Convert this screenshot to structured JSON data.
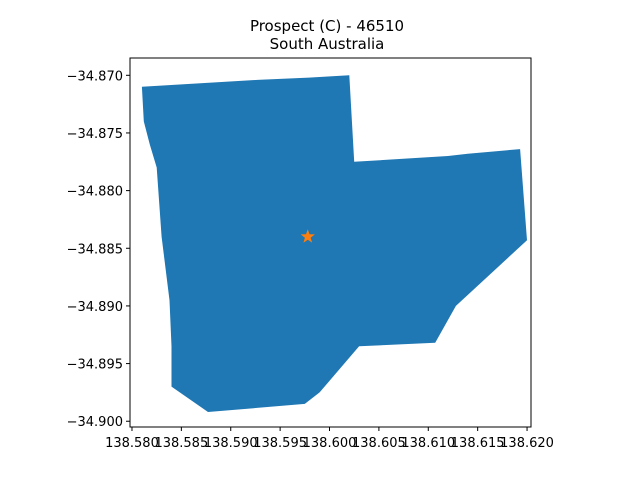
{
  "title": {
    "line1": "Prospect (C) - 46510",
    "line2": "South Australia"
  },
  "colors": {
    "polygon": "#1f77b4",
    "marker": "#ff7f0e",
    "axes": "#000000",
    "background": "#ffffff"
  },
  "chart_data": {
    "type": "map",
    "xlim": [
      138.5798,
      138.6204
    ],
    "ylim": [
      -34.9005,
      -34.8685
    ],
    "grid": false,
    "x_ticks": [
      {
        "value": 138.58,
        "label": "138.580"
      },
      {
        "value": 138.585,
        "label": "138.585"
      },
      {
        "value": 138.59,
        "label": "138.590"
      },
      {
        "value": 138.595,
        "label": "138.595"
      },
      {
        "value": 138.6,
        "label": "138.600"
      },
      {
        "value": 138.605,
        "label": "138.605"
      },
      {
        "value": 138.61,
        "label": "138.610"
      },
      {
        "value": 138.615,
        "label": "138.615"
      },
      {
        "value": 138.62,
        "label": "138.620"
      }
    ],
    "y_ticks": [
      {
        "value": -34.87,
        "label": "−34.870"
      },
      {
        "value": -34.875,
        "label": "−34.875"
      },
      {
        "value": -34.88,
        "label": "−34.880"
      },
      {
        "value": -34.885,
        "label": "−34.885"
      },
      {
        "value": -34.89,
        "label": "−34.890"
      },
      {
        "value": -34.895,
        "label": "−34.895"
      },
      {
        "value": -34.9,
        "label": "−34.900"
      }
    ],
    "polygon": [
      [
        138.581,
        -34.871
      ],
      [
        138.5927,
        -34.8704
      ],
      [
        138.5979,
        -34.8702
      ],
      [
        138.602,
        -34.87
      ],
      [
        138.6025,
        -34.8775
      ],
      [
        138.612,
        -34.877
      ],
      [
        138.614,
        -34.8768
      ],
      [
        138.6193,
        -34.8764
      ],
      [
        138.62,
        -34.8843
      ],
      [
        138.6128,
        -34.89
      ],
      [
        138.6107,
        -34.8932
      ],
      [
        138.603,
        -34.8935
      ],
      [
        138.599,
        -34.8975
      ],
      [
        138.5975,
        -34.8985
      ],
      [
        138.5877,
        -34.8992
      ],
      [
        138.584,
        -34.897
      ],
      [
        138.584,
        -34.8935
      ],
      [
        138.5838,
        -34.8895
      ],
      [
        138.583,
        -34.884
      ],
      [
        138.5825,
        -34.878
      ],
      [
        138.5818,
        -34.876
      ],
      [
        138.5812,
        -34.874
      ]
    ],
    "marker": {
      "shape": "star",
      "x": 138.5978,
      "y": -34.884
    }
  }
}
